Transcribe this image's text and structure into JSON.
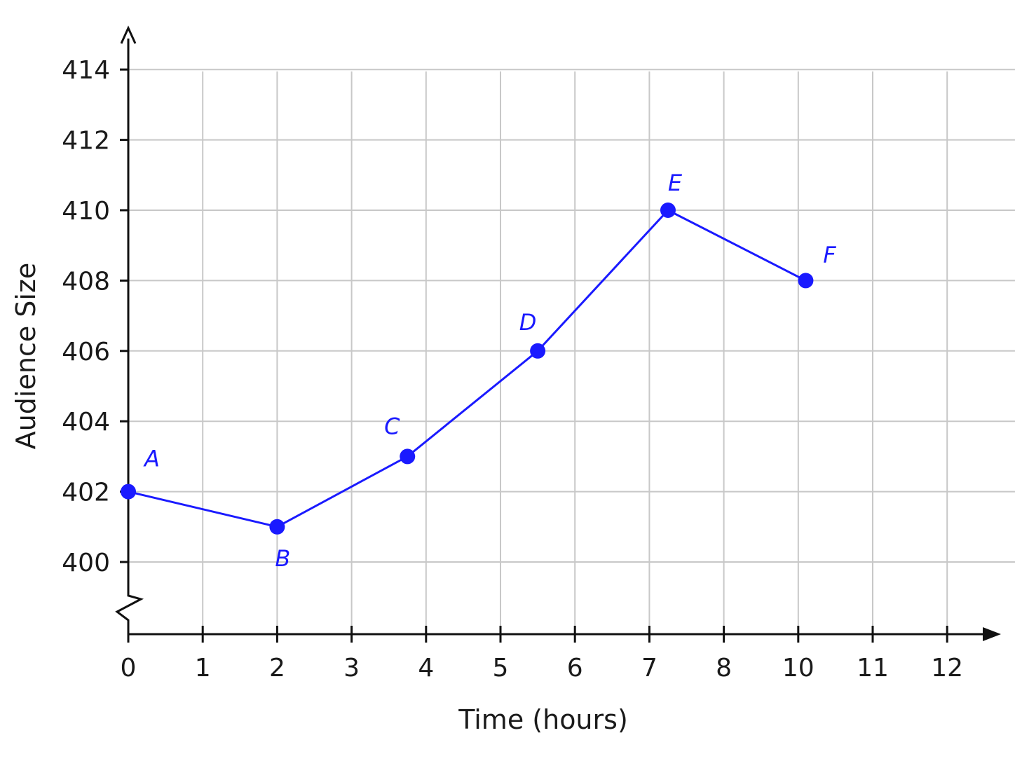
{
  "chart_data": {
    "type": "line",
    "xlabel": "Time (hours)",
    "ylabel": "Audience Size",
    "xlim": [
      0,
      12
    ],
    "ylim": [
      400,
      414
    ],
    "y_axis_break": true,
    "grid": true,
    "x_ticks": [
      "0",
      "1",
      "2",
      "3",
      "4",
      "5",
      "6",
      "7",
      "8",
      "10",
      "11",
      "12"
    ],
    "y_ticks": [
      "400",
      "402",
      "404",
      "406",
      "408",
      "410",
      "412",
      "414"
    ],
    "series": [
      {
        "points": [
          {
            "label": "A",
            "x": 0,
            "y": 402
          },
          {
            "label": "B",
            "x": 2,
            "y": 401
          },
          {
            "label": "C",
            "x": 3.75,
            "y": 403
          },
          {
            "label": "D",
            "x": 5.5,
            "y": 406
          },
          {
            "label": "E",
            "x": 7.25,
            "y": 410
          },
          {
            "label": "F",
            "x": 9.1,
            "y": 408
          }
        ]
      }
    ],
    "colors": {
      "series": "#1a1aff",
      "grid": "#c8c8c8",
      "axis": "#111111"
    }
  }
}
